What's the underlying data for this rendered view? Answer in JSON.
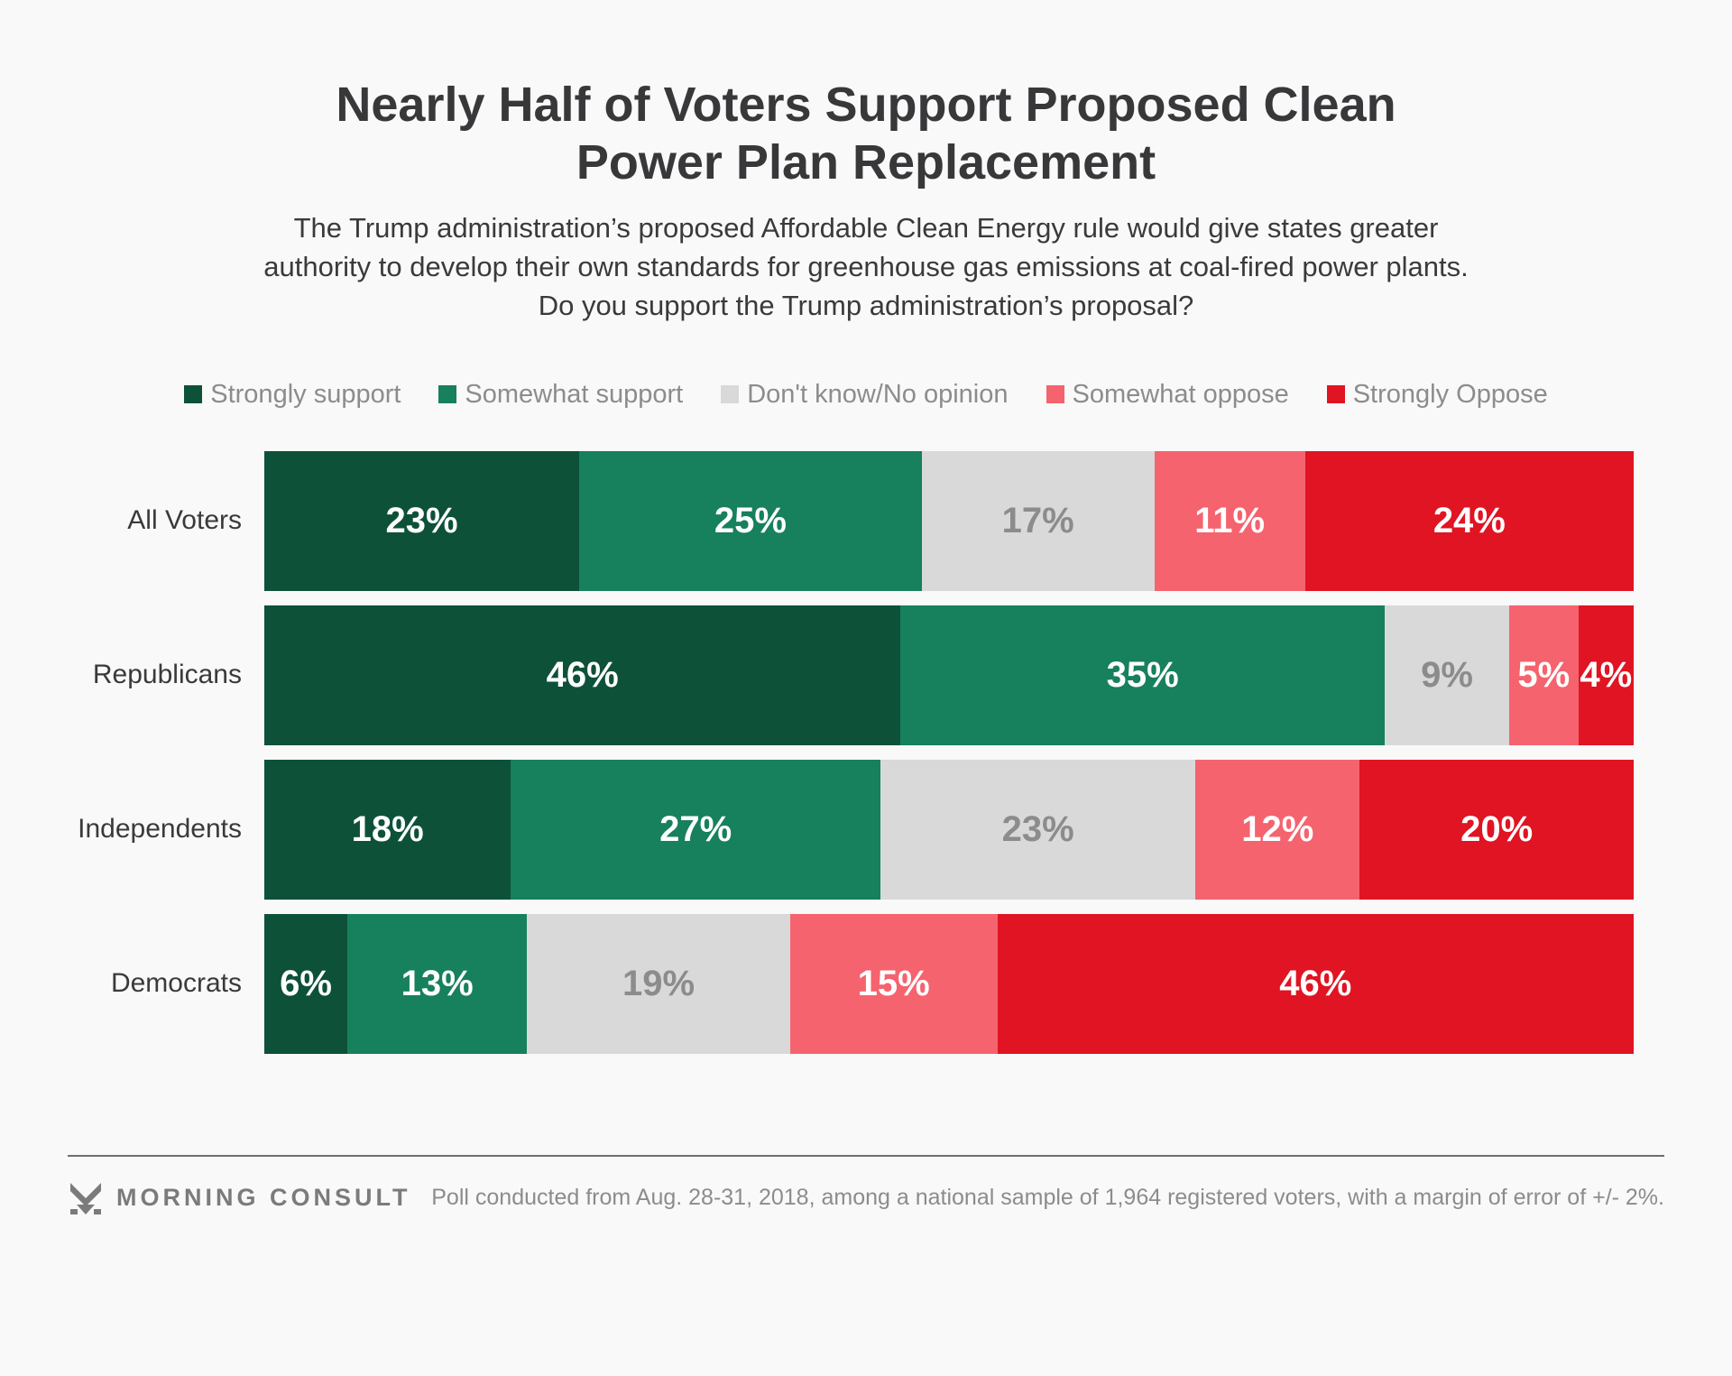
{
  "title": "Nearly Half of Voters Support Proposed Clean Power Plan Replacement",
  "subtitle": "The Trump administration’s proposed Affordable Clean Energy rule would give states greater authority to develop their own standards for greenhouse gas emissions at coal-fired power plants. Do you support the Trump administration’s proposal?",
  "colors": {
    "background": "#F9F9F9",
    "strongly_support": "#0D5139",
    "somewhat_support": "#17805C",
    "dont_know": "#D9D9D9",
    "somewhat_oppose": "#F5636E",
    "strongly_oppose": "#E01422",
    "text_dark": "#3A3A3C",
    "text_gray": "#8C8C8C"
  },
  "chart_data": {
    "type": "bar",
    "stacked": true,
    "orientation": "horizontal",
    "title": "Nearly Half of Voters Support Proposed Clean Power Plan Replacement",
    "legend_position": "top",
    "value_format": "percent",
    "grid": false,
    "categories": [
      "All Voters",
      "Republicans",
      "Independents",
      "Democrats"
    ],
    "series": [
      {
        "name": "Strongly support",
        "color": "#0D5139",
        "neutral": false,
        "values": [
          23,
          46,
          18,
          6
        ]
      },
      {
        "name": "Somewhat support",
        "color": "#17805C",
        "neutral": false,
        "values": [
          25,
          35,
          27,
          13
        ]
      },
      {
        "name": "Don't know/No opinion",
        "color": "#D9D9D9",
        "neutral": true,
        "values": [
          17,
          9,
          23,
          19
        ]
      },
      {
        "name": "Somewhat oppose",
        "color": "#F5636E",
        "neutral": false,
        "values": [
          11,
          5,
          12,
          15
        ]
      },
      {
        "name": "Strongly Oppose",
        "color": "#E01422",
        "neutral": false,
        "values": [
          24,
          4,
          20,
          46
        ]
      }
    ]
  },
  "footer": {
    "brand": "MORNING CONSULT",
    "note": "Poll conducted from Aug. 28-31, 2018, among a national sample of 1,964 registered voters, with a margin of error of +/- 2%."
  }
}
